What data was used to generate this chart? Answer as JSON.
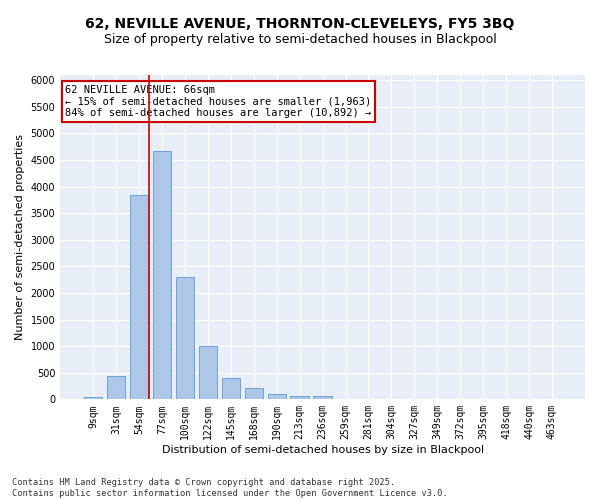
{
  "title_line1": "62, NEVILLE AVENUE, THORNTON-CLEVELEYS, FY5 3BQ",
  "title_line2": "Size of property relative to semi-detached houses in Blackpool",
  "xlabel": "Distribution of semi-detached houses by size in Blackpool",
  "ylabel": "Number of semi-detached properties",
  "categories": [
    "9sqm",
    "31sqm",
    "54sqm",
    "77sqm",
    "100sqm",
    "122sqm",
    "145sqm",
    "168sqm",
    "190sqm",
    "213sqm",
    "236sqm",
    "259sqm",
    "281sqm",
    "304sqm",
    "327sqm",
    "349sqm",
    "372sqm",
    "395sqm",
    "418sqm",
    "440sqm",
    "463sqm"
  ],
  "values": [
    50,
    440,
    3850,
    4680,
    2300,
    1000,
    410,
    210,
    100,
    70,
    70,
    0,
    0,
    0,
    0,
    0,
    0,
    0,
    0,
    0,
    0
  ],
  "bar_color": "#aec6e8",
  "bar_edge_color": "#5b9bd5",
  "vline_color": "#cc0000",
  "vline_pos": 2.42,
  "annotation_text": "62 NEVILLE AVENUE: 66sqm\n← 15% of semi-detached houses are smaller (1,963)\n84% of semi-detached houses are larger (10,892) →",
  "annotation_box_color": "#cc0000",
  "ylim": [
    0,
    6100
  ],
  "yticks": [
    0,
    500,
    1000,
    1500,
    2000,
    2500,
    3000,
    3500,
    4000,
    4500,
    5000,
    5500,
    6000
  ],
  "background_color": "#e8eef7",
  "grid_color": "#ffffff",
  "footer_text": "Contains HM Land Registry data © Crown copyright and database right 2025.\nContains public sector information licensed under the Open Government Licence v3.0.",
  "title_fontsize": 10,
  "subtitle_fontsize": 9,
  "axis_label_fontsize": 8,
  "tick_fontsize": 7,
  "annotation_fontsize": 7.5,
  "ylabel_fontsize": 8
}
